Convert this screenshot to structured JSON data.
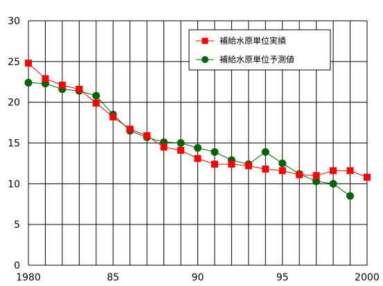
{
  "chart_data": {
    "type": "line",
    "xlim": [
      1980,
      2000
    ],
    "ylim": [
      0,
      30
    ],
    "grid": true,
    "legend_position": "top-right",
    "x_tick_values": [
      1980,
      1985,
      1990,
      1995,
      2000
    ],
    "x_tick_labels": [
      "1980",
      "85",
      "90",
      "95",
      "2000"
    ],
    "y_tick_values": [
      0,
      5,
      10,
      15,
      20,
      25,
      30
    ],
    "y_tick_labels": [
      "0",
      "5",
      "10",
      "15",
      "20",
      "25",
      "30"
    ],
    "series": [
      {
        "name": "補給水原単位実績",
        "color": "#ff0000",
        "marker": "square",
        "x": [
          1980,
          1981,
          1982,
          1983,
          1984,
          1985,
          1986,
          1987,
          1988,
          1989,
          1990,
          1991,
          1992,
          1993,
          1994,
          1995,
          1996,
          1997,
          1998,
          1999,
          2000
        ],
        "y": [
          24.8,
          22.9,
          22.1,
          21.6,
          19.9,
          18.2,
          16.7,
          15.9,
          14.5,
          14.1,
          13.1,
          12.4,
          12.4,
          12.2,
          11.8,
          11.6,
          11.1,
          11.0,
          11.6,
          11.6,
          10.8
        ]
      },
      {
        "name": "補給水原単位予測値",
        "color": "#006400",
        "marker": "circle",
        "x": [
          1980,
          1981,
          1982,
          1983,
          1984,
          1985,
          1986,
          1987,
          1988,
          1989,
          1990,
          1991,
          1992,
          1993,
          1994,
          1995,
          1996,
          1997,
          1998,
          1999
        ],
        "y": [
          22.4,
          22.3,
          21.6,
          21.4,
          20.8,
          18.5,
          16.5,
          15.7,
          15.1,
          15.0,
          14.4,
          13.9,
          12.9,
          12.4,
          13.9,
          12.5,
          11.2,
          10.3,
          10.0,
          8.5
        ]
      }
    ]
  }
}
